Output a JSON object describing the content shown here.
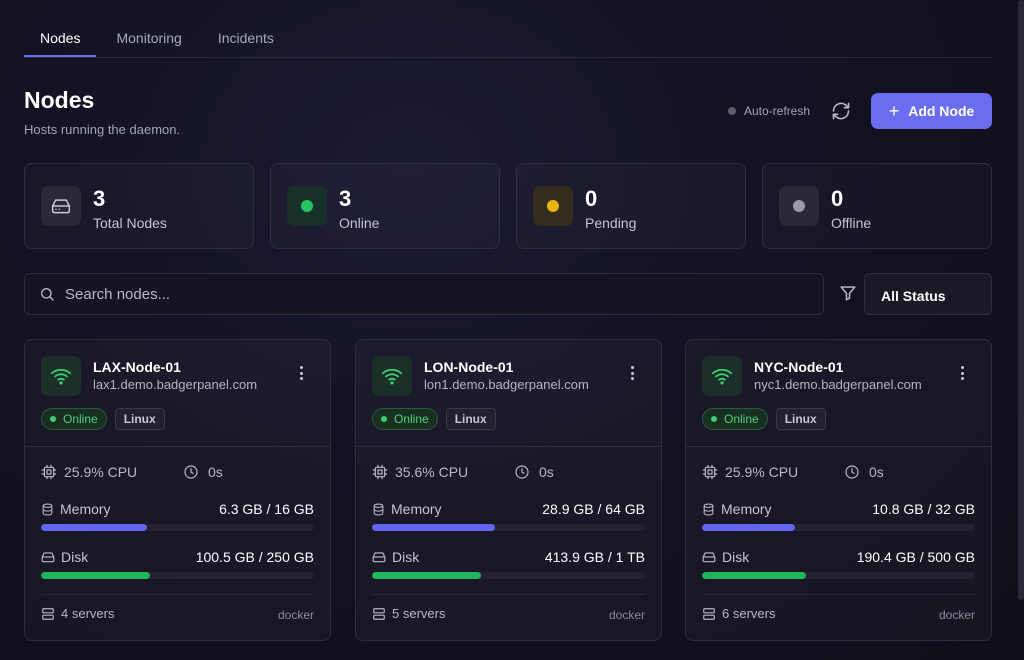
{
  "tabs": [
    {
      "label": "Nodes",
      "active": true
    },
    {
      "label": "Monitoring",
      "active": false
    },
    {
      "label": "Incidents",
      "active": false
    }
  ],
  "header": {
    "title": "Nodes",
    "subtitle": "Hosts running the daemon.",
    "auto_refresh_label": "Auto-refresh",
    "add_button_label": "Add Node"
  },
  "stats": [
    {
      "value": "3",
      "label": "Total Nodes",
      "icon": "server-icon"
    },
    {
      "value": "3",
      "label": "Online",
      "color": "#22c55e"
    },
    {
      "value": "0",
      "label": "Pending",
      "color": "#eab308"
    },
    {
      "value": "0",
      "label": "Offline",
      "color": "#9a9aae"
    }
  ],
  "search": {
    "placeholder": "Search nodes...",
    "value": ""
  },
  "filter": {
    "selected": "All Status"
  },
  "nodes": [
    {
      "name": "LAX-Node-01",
      "host": "lax1.demo.badgerpanel.com",
      "status": "Online",
      "os": "Linux",
      "cpu": "25.9% CPU",
      "uptime": "0s",
      "memory_label": "Memory",
      "memory": "6.3 GB / 16 GB",
      "memory_fraction": 0.39,
      "disk_label": "Disk",
      "disk": "100.5 GB / 250 GB",
      "disk_fraction": 0.4,
      "servers": "4 servers",
      "runtime": "docker"
    },
    {
      "name": "LON-Node-01",
      "host": "lon1.demo.badgerpanel.com",
      "status": "Online",
      "os": "Linux",
      "cpu": "35.6% CPU",
      "uptime": "0s",
      "memory_label": "Memory",
      "memory": "28.9 GB / 64 GB",
      "memory_fraction": 0.45,
      "disk_label": "Disk",
      "disk": "413.9 GB / 1 TB",
      "disk_fraction": 0.4,
      "servers": "5 servers",
      "runtime": "docker"
    },
    {
      "name": "NYC-Node-01",
      "host": "nyc1.demo.badgerpanel.com",
      "status": "Online",
      "os": "Linux",
      "cpu": "25.9% CPU",
      "uptime": "0s",
      "memory_label": "Memory",
      "memory": "10.8 GB / 32 GB",
      "memory_fraction": 0.34,
      "disk_label": "Disk",
      "disk": "190.4 GB / 500 GB",
      "disk_fraction": 0.38,
      "servers": "6 servers",
      "runtime": "docker"
    }
  ],
  "colors": {
    "accent": "#6b6cf0",
    "online": "#22c55e",
    "memory_bar": "#6366f1",
    "disk_bar": "#22b55f"
  }
}
